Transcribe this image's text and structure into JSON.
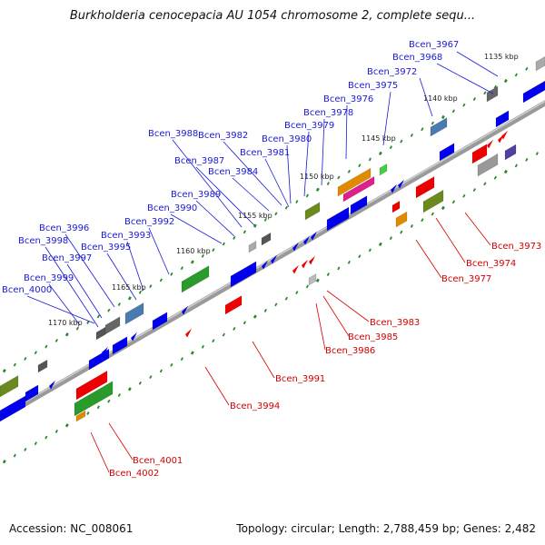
{
  "title": "Burkholderia cenocepacia AU 1054 chromosome 2, complete sequ...",
  "footer": {
    "accession": "Accession: NC_008061",
    "summary": "Topology: circular; Length: 2,788,459 bp; Genes: 2,482"
  },
  "kbp_labels": [
    "1135 kbp",
    "1140 kbp",
    "1145 kbp",
    "1150 kbp",
    "1155 kbp",
    "1160 kbp",
    "1165 kbp",
    "1170 kbp"
  ],
  "forward_genes": [
    "Bcen_3967",
    "Bcen_3968",
    "Bcen_3972",
    "Bcen_3975",
    "Bcen_3976",
    "Bcen_3978",
    "Bcen_3979",
    "Bcen_3980",
    "Bcen_3981",
    "Bcen_3982",
    "Bcen_3984",
    "Bcen_3987",
    "Bcen_3988",
    "Bcen_3989",
    "Bcen_3990",
    "Bcen_3992",
    "Bcen_3993",
    "Bcen_3995",
    "Bcen_3996",
    "Bcen_3997",
    "Bcen_3998",
    "Bcen_3999",
    "Bcen_4000"
  ],
  "reverse_genes": [
    "Bcen_3973",
    "Bcen_3974",
    "Bcen_3977",
    "Bcen_3983",
    "Bcen_3985",
    "Bcen_3986",
    "Bcen_3991",
    "Bcen_3994",
    "Bcen_4001",
    "Bcen_4002"
  ],
  "colors": {
    "forward_label": "#1a1ad6",
    "reverse_label": "#d40000",
    "forward_strand": "#0000ee",
    "reverse_strand": "#ee0000",
    "backbone": "#8a8a8a",
    "tick": "#2a8a2a"
  }
}
